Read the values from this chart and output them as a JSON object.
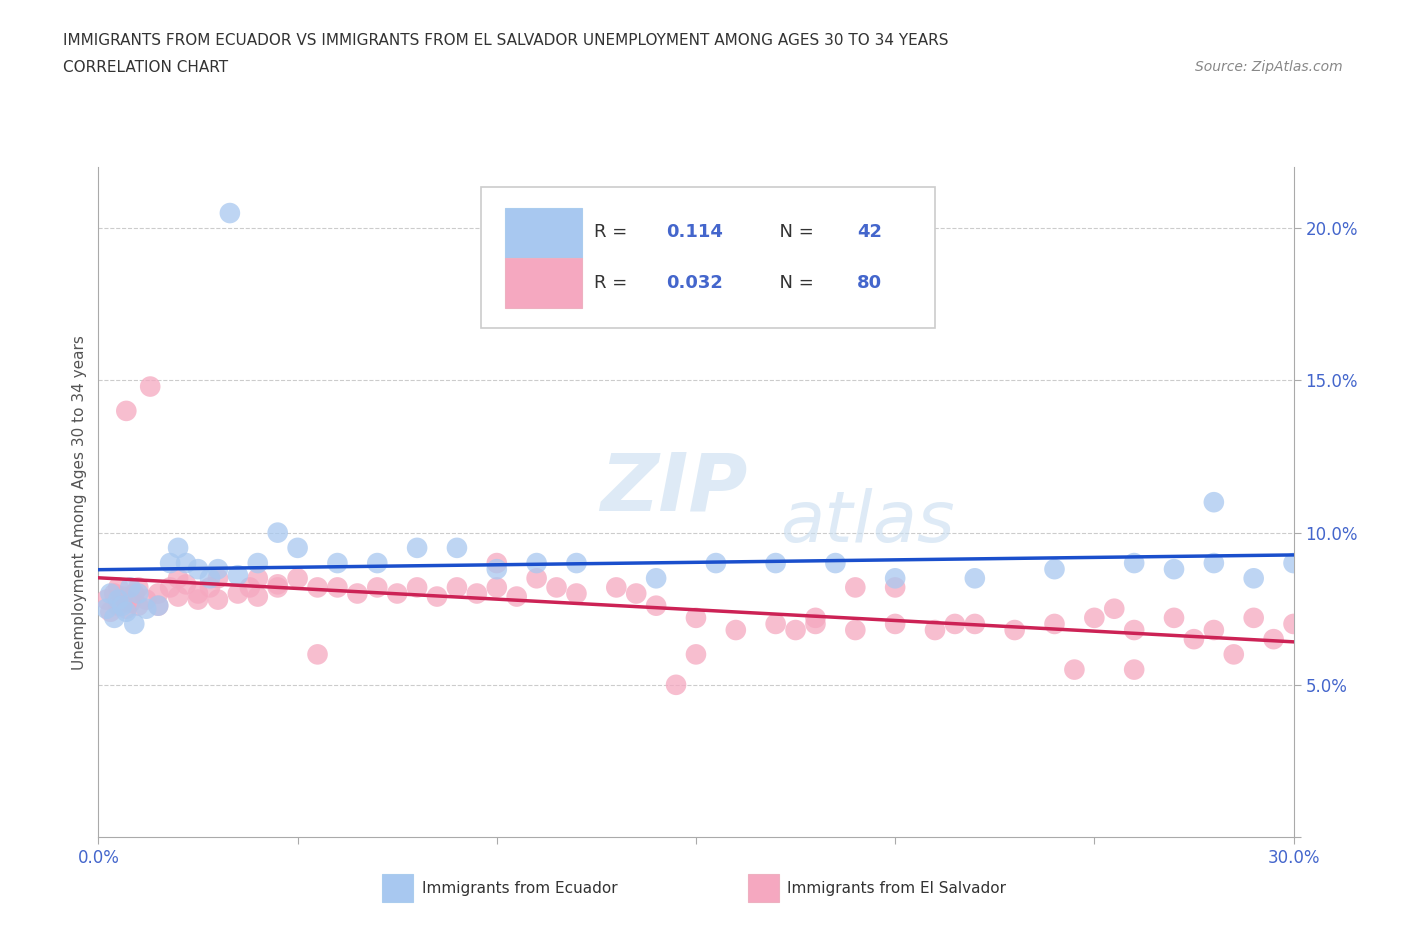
{
  "title_line1": "IMMIGRANTS FROM ECUADOR VS IMMIGRANTS FROM EL SALVADOR UNEMPLOYMENT AMONG AGES 30 TO 34 YEARS",
  "title_line2": "CORRELATION CHART",
  "source": "Source: ZipAtlas.com",
  "ylabel": "Unemployment Among Ages 30 to 34 years",
  "xlim": [
    0.0,
    0.3
  ],
  "ylim": [
    0.0,
    0.22
  ],
  "ecuador_color": "#a8c8f0",
  "salvador_color": "#f5a8c0",
  "ecuador_line_color": "#1a4fcc",
  "salvador_line_color": "#cc2255",
  "R_ecuador": 0.114,
  "N_ecuador": 42,
  "R_salvador": 0.032,
  "N_salvador": 80,
  "legend_label_ecuador": "Immigrants from Ecuador",
  "legend_label_salvador": "Immigrants from El Salvador",
  "watermark_zip": "ZIP",
  "watermark_atlas": "atlas",
  "ecuador_x": [
    0.002,
    0.003,
    0.004,
    0.005,
    0.006,
    0.007,
    0.008,
    0.009,
    0.01,
    0.012,
    0.015,
    0.018,
    0.02,
    0.022,
    0.025,
    0.028,
    0.03,
    0.035,
    0.04,
    0.045,
    0.05,
    0.06,
    0.07,
    0.08,
    0.09,
    0.1,
    0.11,
    0.12,
    0.14,
    0.155,
    0.17,
    0.185,
    0.2,
    0.22,
    0.24,
    0.26,
    0.27,
    0.28,
    0.29,
    0.3,
    0.033,
    0.28
  ],
  "ecuador_y": [
    0.075,
    0.08,
    0.072,
    0.078,
    0.076,
    0.074,
    0.082,
    0.07,
    0.08,
    0.075,
    0.076,
    0.09,
    0.095,
    0.09,
    0.088,
    0.085,
    0.088,
    0.086,
    0.09,
    0.1,
    0.095,
    0.09,
    0.09,
    0.095,
    0.095,
    0.088,
    0.09,
    0.09,
    0.085,
    0.09,
    0.09,
    0.09,
    0.085,
    0.085,
    0.088,
    0.09,
    0.088,
    0.09,
    0.085,
    0.09,
    0.205,
    0.11
  ],
  "salvador_x": [
    0.002,
    0.003,
    0.004,
    0.005,
    0.005,
    0.006,
    0.007,
    0.008,
    0.009,
    0.01,
    0.01,
    0.012,
    0.015,
    0.015,
    0.018,
    0.02,
    0.02,
    0.022,
    0.025,
    0.025,
    0.028,
    0.03,
    0.03,
    0.035,
    0.038,
    0.04,
    0.04,
    0.045,
    0.05,
    0.055,
    0.06,
    0.065,
    0.07,
    0.075,
    0.08,
    0.085,
    0.09,
    0.095,
    0.1,
    0.105,
    0.11,
    0.115,
    0.12,
    0.13,
    0.135,
    0.14,
    0.15,
    0.16,
    0.17,
    0.175,
    0.18,
    0.19,
    0.2,
    0.21,
    0.22,
    0.23,
    0.24,
    0.25,
    0.26,
    0.27,
    0.28,
    0.29,
    0.3,
    0.19,
    0.2,
    0.007,
    0.013,
    0.045,
    0.055,
    0.1,
    0.145,
    0.18,
    0.215,
    0.245,
    0.255,
    0.26,
    0.275,
    0.285,
    0.295,
    0.15
  ],
  "salvador_y": [
    0.078,
    0.074,
    0.08,
    0.076,
    0.082,
    0.079,
    0.075,
    0.077,
    0.08,
    0.076,
    0.082,
    0.078,
    0.08,
    0.076,
    0.082,
    0.079,
    0.085,
    0.083,
    0.08,
    0.078,
    0.082,
    0.078,
    0.085,
    0.08,
    0.082,
    0.079,
    0.085,
    0.083,
    0.085,
    0.082,
    0.082,
    0.08,
    0.082,
    0.08,
    0.082,
    0.079,
    0.082,
    0.08,
    0.082,
    0.079,
    0.085,
    0.082,
    0.08,
    0.082,
    0.08,
    0.076,
    0.072,
    0.068,
    0.07,
    0.068,
    0.072,
    0.068,
    0.07,
    0.068,
    0.07,
    0.068,
    0.07,
    0.072,
    0.068,
    0.072,
    0.068,
    0.072,
    0.07,
    0.082,
    0.082,
    0.14,
    0.148,
    0.082,
    0.06,
    0.09,
    0.05,
    0.07,
    0.07,
    0.055,
    0.075,
    0.055,
    0.065,
    0.06,
    0.065,
    0.06
  ]
}
